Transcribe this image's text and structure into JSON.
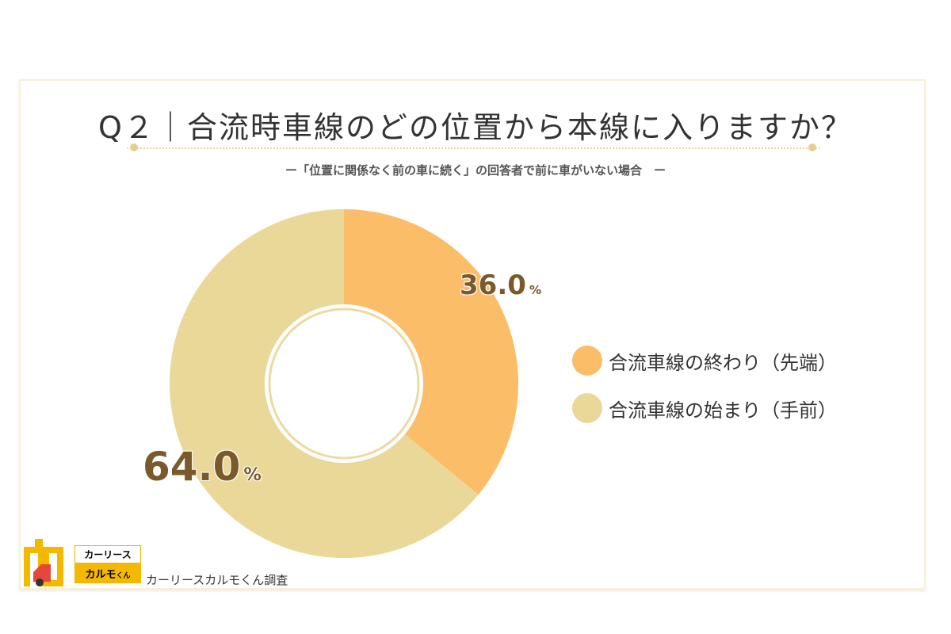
{
  "header": {
    "title": "Q２｜合流時車線のどの位置から本線に入りますか？",
    "subtitle": "ー「位置に関係なく前の車に続く」の回答者で前に車がいない場合　ー"
  },
  "chart_data": {
    "type": "pie",
    "donut": true,
    "title": "Q２｜合流時車線のどの位置から本線に入りますか？",
    "categories": [
      "合流車線の終わり（先端）",
      "合流車線の始まり（手前）"
    ],
    "values": [
      36.0,
      64.0
    ],
    "value_labels": [
      "36.0",
      "64.0"
    ],
    "unit": "%",
    "colors": [
      "#fbbd68",
      "#e9d898"
    ],
    "legend_position": "right"
  },
  "footer": {
    "brand_top": "カーリース",
    "brand_bottom": "カルモ",
    "brand_small": "くん",
    "credit": "カーリースカルモくん調査"
  }
}
